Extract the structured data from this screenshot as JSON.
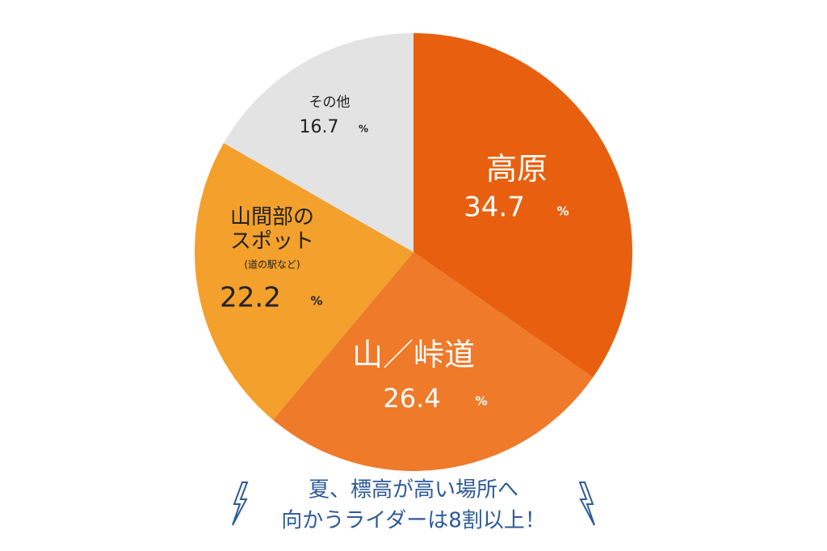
{
  "chart_data": {
    "type": "pie",
    "categories": [
      "高原",
      "山／峠道",
      "山間部のスポット",
      "その他"
    ],
    "category_notes": [
      null,
      null,
      "(道の駅など)",
      null
    ],
    "values": [
      34.7,
      26.4,
      22.2,
      16.7
    ],
    "unit": "%",
    "colors": [
      "#e8600f",
      "#ee7a2a",
      "#f3a02c",
      "#e3e3e3"
    ],
    "caption": [
      "夏、標高が高い場所へ",
      "向かうライダーは8割以上！"
    ]
  }
}
